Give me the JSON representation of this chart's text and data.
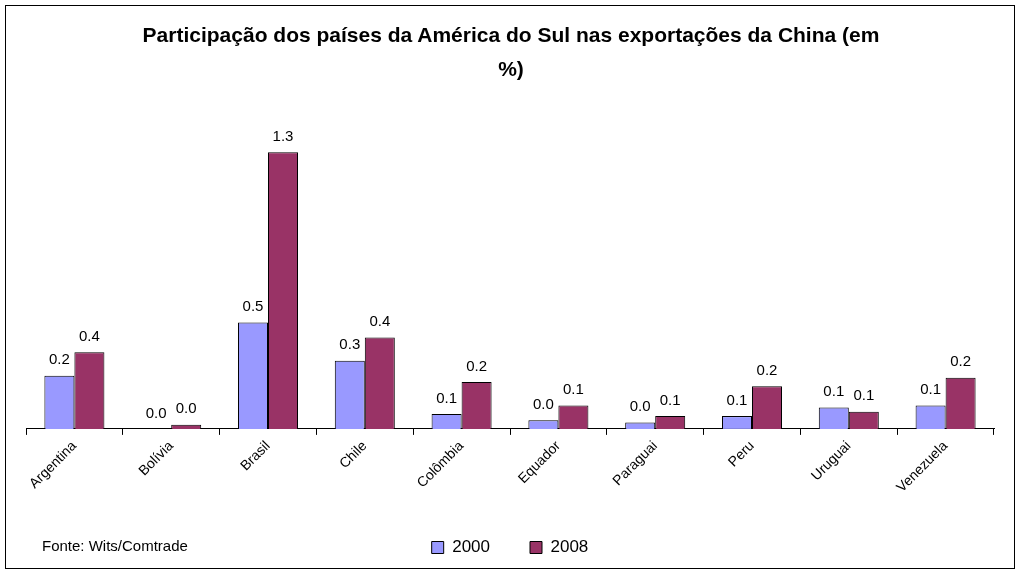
{
  "chart_data": {
    "type": "bar",
    "title": "Participação dos países da América do Sul nas exportações da China (em %)",
    "categories": [
      "Argentina",
      "Bolívia",
      "Brasil",
      "Chile",
      "Colômbia",
      "Equador",
      "Paraguai",
      "Peru",
      "Uruguai",
      "Venezuela"
    ],
    "series": [
      {
        "name": "2000",
        "color": "#9999ff",
        "values": [
          0.25,
          0,
          0.5,
          0.32,
          0.07,
          0.04,
          0.03,
          0.06,
          0.1,
          0.11
        ],
        "value_labels": [
          "0.2",
          "0.0",
          "0.5",
          "0.3",
          "0.1",
          "0.0",
          "0.0",
          "0.1",
          "0.1",
          "0.1"
        ]
      },
      {
        "name": "2008",
        "color": "#993366",
        "values": [
          0.36,
          0.02,
          1.3,
          0.43,
          0.22,
          0.11,
          0.06,
          0.2,
          0.08,
          0.24
        ],
        "value_labels": [
          "0.4",
          "0.0",
          "1.3",
          "0.4",
          "0.2",
          "0.1",
          "0.1",
          "0.2",
          "0.1",
          "0.2"
        ]
      }
    ],
    "legend": "bottom",
    "grid": false,
    "annotations": [
      "Fonte: Wits/Comtrade"
    ]
  }
}
